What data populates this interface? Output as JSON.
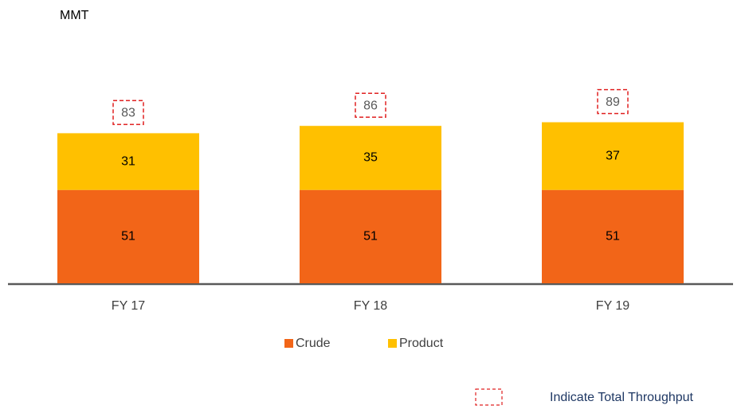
{
  "chart_data": {
    "type": "stacked_bar",
    "ylabel": "MMT",
    "categories": [
      "FY 17",
      "FY 18",
      "FY 19"
    ],
    "series": [
      {
        "name": "Crude",
        "color": "#f26518",
        "values": [
          51,
          51,
          51
        ]
      },
      {
        "name": "Product",
        "color": "#ffc000",
        "values": [
          31,
          35,
          37
        ]
      }
    ],
    "totals": [
      83,
      86,
      89
    ],
    "totals_note": "Indicate Total  Throughput",
    "ylim": [
      0,
      100
    ]
  }
}
